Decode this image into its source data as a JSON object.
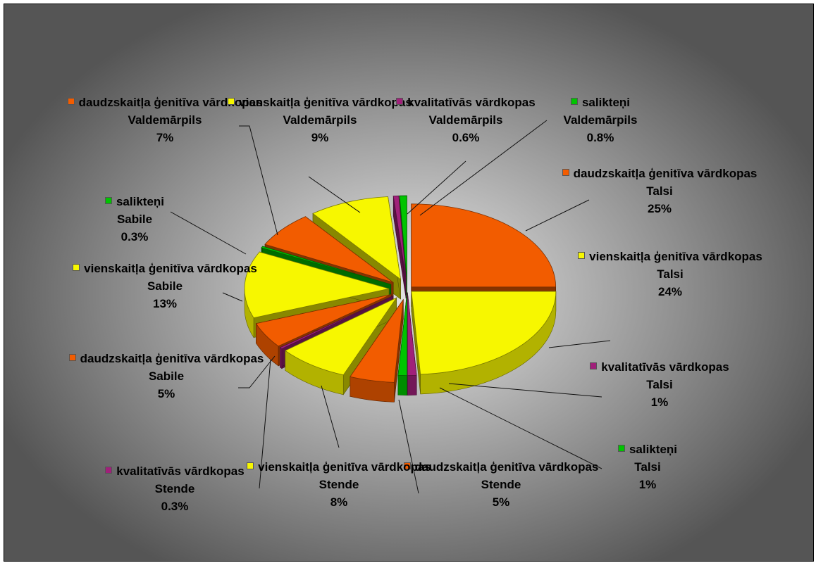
{
  "chart_data": {
    "type": "pie",
    "style": "3d-exploded",
    "colors": {
      "daudzskaitla": "#f25c00",
      "vienskaitla": "#f7f700",
      "kvalitativas": "#a0207a",
      "salikteni": "#00c400"
    },
    "slices": [
      {
        "category": "daudzskaitļa ģenitīva vārdkopas",
        "place": "Talsi",
        "percent": "25%",
        "value": 25,
        "color_key": "daudzskaitla"
      },
      {
        "category": "vienskaitļa ģenitīva vārdkopas",
        "place": "Talsi",
        "percent": "24%",
        "value": 24,
        "color_key": "vienskaitla"
      },
      {
        "category": "kvalitatīvās vārdkopas",
        "place": "Talsi",
        "percent": "1%",
        "value": 1,
        "color_key": "kvalitativas"
      },
      {
        "category": "salikteņi",
        "place": "Talsi",
        "percent": "1%",
        "value": 1,
        "color_key": "salikteni"
      },
      {
        "category": "daudzskaitļa ģenitīva vārdkopas",
        "place": "Stende",
        "percent": "5%",
        "value": 5,
        "color_key": "daudzskaitla"
      },
      {
        "category": "vienskaitļa ģenitīva vārdkopas",
        "place": "Stende",
        "percent": "8%",
        "value": 8,
        "color_key": "vienskaitla"
      },
      {
        "category": "kvalitatīvās vārdkopas",
        "place": "Stende",
        "percent": "0.3%",
        "value": 0.3,
        "color_key": "kvalitativas"
      },
      {
        "category": "daudzskaitļa ģenitīva vārdkopas",
        "place": "Sabile",
        "percent": "5%",
        "value": 5,
        "color_key": "daudzskaitla"
      },
      {
        "category": "vienskaitļa ģenitīva vārdkopas",
        "place": "Sabile",
        "percent": "13%",
        "value": 13,
        "color_key": "vienskaitla"
      },
      {
        "category": "salikteņi",
        "place": "Sabile",
        "percent": "0.3%",
        "value": 0.3,
        "color_key": "salikteni"
      },
      {
        "category": "daudzskaitļa ģenitīva vārdkopas",
        "place": "Valdemārpils",
        "percent": "7%",
        "value": 7,
        "color_key": "daudzskaitla"
      },
      {
        "category": "vienskaitļa ģenitīva vārdkopas",
        "place": "Valdemārpils",
        "percent": "9%",
        "value": 9,
        "color_key": "vienskaitla"
      },
      {
        "category": "kvalitatīvās vārdkopas",
        "place": "Valdemārpils",
        "percent": "0.6%",
        "value": 0.6,
        "color_key": "kvalitativas"
      },
      {
        "category": "salikteņi",
        "place": "Valdemārpils",
        "percent": "0.8%",
        "value": 0.8,
        "color_key": "salikteni"
      }
    ]
  }
}
